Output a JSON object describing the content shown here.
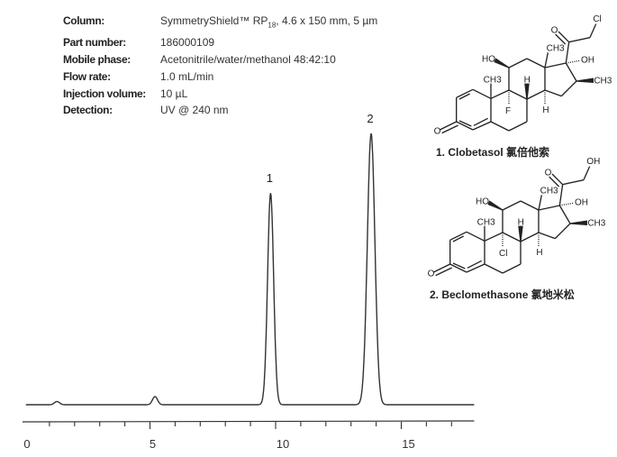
{
  "conditions": [
    {
      "label": "Column:",
      "value": "SymmetryShield™ RP",
      "sub": "18",
      "value_after": ", 4.6 x 150 mm, 5 µm"
    },
    {
      "label": "Part number:",
      "value": "186000109"
    },
    {
      "label": "Mobile phase:",
      "value": "Acetonitrile/water/methanol 48:42:10"
    },
    {
      "label": "Flow rate:",
      "value": "1.0 mL/min"
    },
    {
      "label": "Injection volume:",
      "value": "10 µL"
    },
    {
      "label": "Detection:",
      "value": "UV @ 240 nm"
    }
  ],
  "compounds": [
    {
      "caption": "1. Clobetasol 氯倍他索",
      "halogen_9": "F",
      "side_chain_end": "Cl"
    },
    {
      "caption": "2. Beclomethasone 氯地米松",
      "halogen_9": "Cl",
      "side_chain_end": "OH"
    }
  ],
  "structure_labels": {
    "oh": "HO",
    "oh_r": "OH",
    "ch3": "CH3",
    "h": "H",
    "o": "O"
  },
  "chart_data": {
    "type": "line",
    "title": "",
    "xlabel": "",
    "ylabel": "",
    "xlim": [
      0,
      17.9
    ],
    "x_ticks": [
      0,
      5,
      10,
      15
    ],
    "x_minor_tick_step": 1,
    "grid": false,
    "y_axis_shown": false,
    "line_color": "#333333",
    "peaks": [
      {
        "label": "1",
        "retention_time": 9.8,
        "relative_height": 0.78,
        "width_sigma": 0.12
      },
      {
        "label": "2",
        "retention_time": 13.8,
        "relative_height": 1.0,
        "width_sigma": 0.15
      }
    ],
    "minor_peaks": [
      {
        "retention_time": 1.3,
        "relative_height": 0.012
      },
      {
        "retention_time": 5.2,
        "relative_height": 0.03
      }
    ]
  }
}
